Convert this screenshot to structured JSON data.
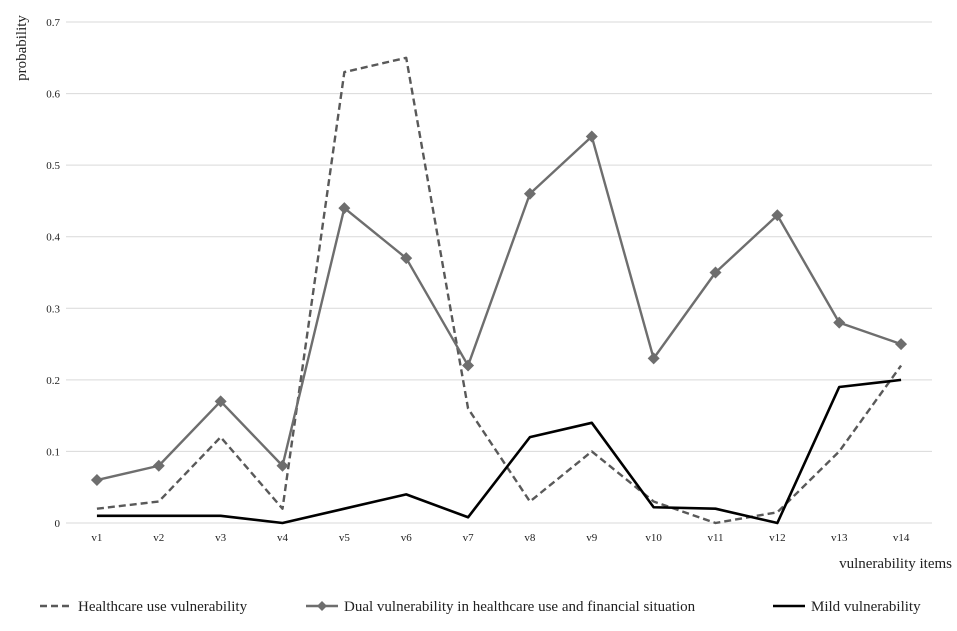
{
  "chart_data": {
    "type": "line",
    "title": "",
    "xlabel": "vulnerability items",
    "ylabel": "probability",
    "categories": [
      "v1",
      "v2",
      "v3",
      "v4",
      "v5",
      "v6",
      "v7",
      "v8",
      "v9",
      "v10",
      "v11",
      "v12",
      "v13",
      "v14"
    ],
    "ylim": [
      0,
      0.7
    ],
    "yticks": [
      "0",
      "0.1",
      "0.2",
      "0.3",
      "0.4",
      "0.5",
      "0.6",
      "0.7"
    ],
    "grid": true,
    "legend_position": "bottom",
    "series": [
      {
        "name": "Healthcare use vulnerability",
        "style": "dashed",
        "color": "#595959",
        "marker": "none",
        "values": [
          0.02,
          0.03,
          0.12,
          0.02,
          0.63,
          0.65,
          0.16,
          0.03,
          0.1,
          0.03,
          0.0,
          0.015,
          0.1,
          0.22
        ]
      },
      {
        "name": "Dual vulnerability in healthcare use and financial situation",
        "style": "solid",
        "color": "#6e6e6e",
        "marker": "diamond",
        "values": [
          0.06,
          0.08,
          0.17,
          0.08,
          0.44,
          0.37,
          0.22,
          0.46,
          0.54,
          0.23,
          0.35,
          0.43,
          0.28,
          0.25
        ]
      },
      {
        "name": "Mild vulnerability",
        "style": "solid",
        "color": "#000000",
        "marker": "none",
        "values": [
          0.01,
          0.01,
          0.01,
          0.0,
          0.02,
          0.04,
          0.008,
          0.12,
          0.14,
          0.022,
          0.02,
          0.0,
          0.19,
          0.2
        ]
      }
    ]
  }
}
